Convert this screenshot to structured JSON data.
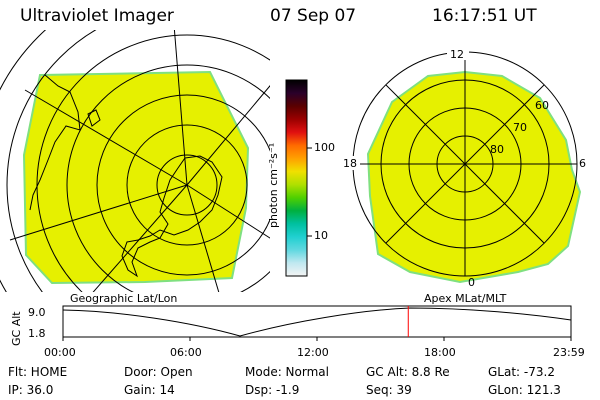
{
  "header": {
    "instrument": "Ultraviolet Imager",
    "date": "07 Sep 07",
    "time": "16:17:51 UT"
  },
  "colors": {
    "image_fill": "#e6f000",
    "image_edge": "#7fe080",
    "orbit_marker": "#ff0000"
  },
  "colorbar": {
    "unit_label": "photon cm⁻²s⁻¹",
    "tick_100": "100",
    "tick_10": "10",
    "gradient_colors": [
      "#000000",
      "#2a002a",
      "#5a0000",
      "#9a0000",
      "#e01010",
      "#ff6a00",
      "#ffa000",
      "#f0e000",
      "#b0e000",
      "#50d000",
      "#00b040",
      "#00c0a0",
      "#20d0d0",
      "#60d8e0",
      "#c0e8f0",
      "#f4f4f4"
    ]
  },
  "left_map": {
    "label": "Geographic Lat/Lon"
  },
  "right_map": {
    "label": "Apex  MLat/MLT",
    "mlt_top": "12",
    "mlt_bottom": "0",
    "mlt_left": "18",
    "mlt_right": "6",
    "lat_60": "60",
    "lat_70": "70",
    "lat_80": "80"
  },
  "orbit_plot": {
    "ylabel": "GC Alt",
    "ytick_top": "9.0",
    "ytick_bottom": "1.8",
    "xticks": [
      "00:00",
      "06:00",
      "12:00",
      "18:00",
      "23:59"
    ],
    "current_time_hours": 16.3
  },
  "status": {
    "flt": "Flt: HOME",
    "ip": "IP: 36.0",
    "door": "Door: Open",
    "gain": "Gain: 14",
    "mode": "Mode: Normal",
    "dsp": "Dsp:    -1.9",
    "gc_alt": "GC Alt: 8.8 Re",
    "seq": "Seq: 39",
    "glat": "GLat: -73.2",
    "glon": "GLon: 121.3"
  }
}
